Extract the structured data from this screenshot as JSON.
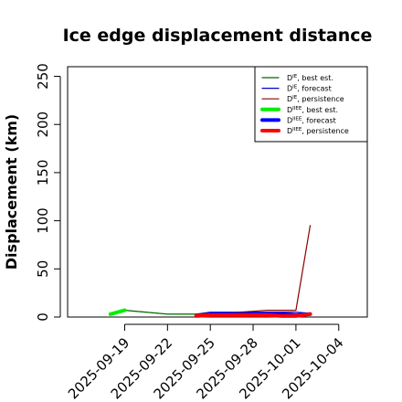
{
  "chart_data": {
    "type": "line",
    "title": "Ice edge displacement distance",
    "xlabel": "",
    "ylabel": "Displacement (km)",
    "xlim": [
      "2025-09-15",
      "2025-10-06"
    ],
    "ylim": [
      0,
      260
    ],
    "yticks": [
      0,
      50,
      100,
      150,
      200,
      250
    ],
    "xticks": [
      "2025-09-19",
      "2025-09-22",
      "2025-09-25",
      "2025-09-28",
      "2025-10-01",
      "2025-10-04"
    ],
    "highlight_xtick": "2025-09-25",
    "highlight_color": "#1f8a1f",
    "grid": false,
    "legend_position": "top-right",
    "series": [
      {
        "name": "D^IE, best est.",
        "label_base": "D",
        "label_sup": "IE",
        "label_rest": ", best est.",
        "color": "#006400",
        "width": 1.2,
        "x": [
          "2025-09-18",
          "2025-09-19",
          "2025-09-22",
          "2025-09-23",
          "2025-09-24"
        ],
        "y": [
          3,
          7,
          3,
          3,
          3
        ]
      },
      {
        "name": "D^IE, forecast",
        "label_base": "D",
        "label_sup": "IE",
        "label_rest": ", forecast",
        "color": "#0000cd",
        "width": 1.2,
        "x": [
          "2025-09-24",
          "2025-09-25",
          "2025-09-26",
          "2025-09-27",
          "2025-09-28",
          "2025-09-29",
          "2025-09-30",
          "2025-10-01",
          "2025-10-02"
        ],
        "y": [
          3,
          5,
          5,
          5,
          5,
          5,
          5,
          5,
          4
        ]
      },
      {
        "name": "D^IE, persistence",
        "label_base": "D",
        "label_sup": "IE",
        "label_rest": ", persistence",
        "color": "#8b0000",
        "width": 1.2,
        "x": [
          "2025-09-24",
          "2025-09-25",
          "2025-09-26",
          "2025-09-27",
          "2025-09-28",
          "2025-09-29",
          "2025-09-30",
          "2025-10-01",
          "2025-10-02"
        ],
        "y": [
          3,
          4,
          4,
          5,
          6,
          7,
          7,
          7,
          95
        ]
      },
      {
        "name": "D^IIEE, best est.",
        "label_base": "D",
        "label_sup": "IIEE",
        "label_rest": ", best est.",
        "color": "#00ee00",
        "width": 4,
        "x": [
          "2025-09-18",
          "2025-09-19"
        ],
        "y": [
          3,
          7
        ]
      },
      {
        "name": "D^IIEE, forecast",
        "label_base": "D",
        "label_sup": "IIEE",
        "label_rest": ", forecast",
        "color": "#0000ff",
        "width": 4,
        "x": [
          "2025-09-25",
          "2025-09-26",
          "2025-09-27",
          "2025-09-28",
          "2025-09-29",
          "2025-09-30",
          "2025-10-01",
          "2025-10-02"
        ],
        "y": [
          3,
          3,
          3,
          3,
          3,
          3,
          2,
          3
        ]
      },
      {
        "name": "D^IIEE, persistence",
        "label_base": "D",
        "label_sup": "IIEE",
        "label_rest": ", persistence",
        "color": "#ff0000",
        "width": 4,
        "x": [
          "2025-09-24",
          "2025-09-25",
          "2025-09-26",
          "2025-09-27",
          "2025-09-28",
          "2025-09-29",
          "2025-09-30",
          "2025-10-01",
          "2025-10-02"
        ],
        "y": [
          1,
          2,
          2,
          2,
          2,
          2,
          1,
          1,
          3
        ]
      },
      {
        "name": "",
        "color": "#00ee00",
        "width": 1,
        "x": [
          "2025-09-19",
          "2025-09-22",
          "2025-09-24"
        ],
        "y": [
          7,
          3,
          3
        ]
      }
    ]
  }
}
